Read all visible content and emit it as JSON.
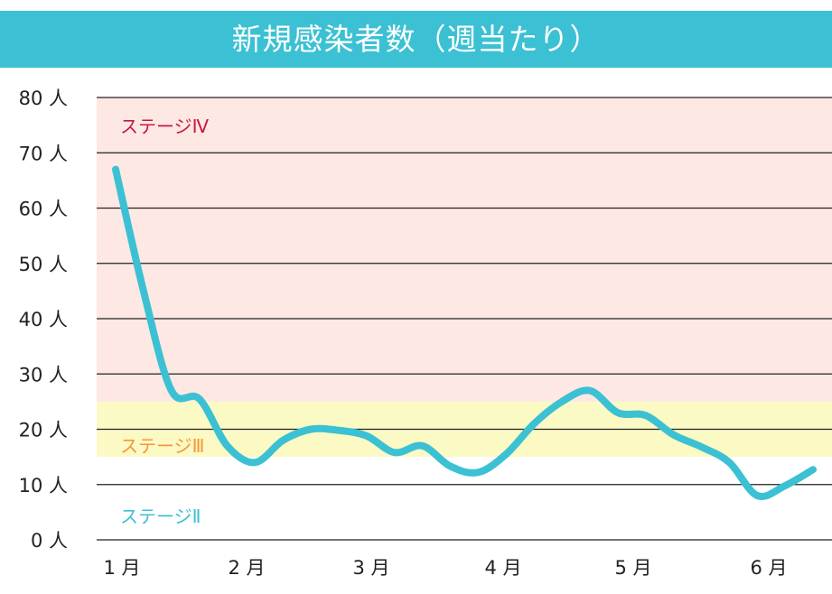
{
  "chart_data": {
    "type": "line",
    "title": "新規感染者数（週当たり）",
    "ylim": [
      0,
      80
    ],
    "yticks": [
      0,
      10,
      20,
      30,
      40,
      50,
      60,
      70,
      80
    ],
    "ytick_labels": [
      "0 人",
      "10 人",
      "20 人",
      "30 人",
      "40 人",
      "50 人",
      "60 人",
      "70 人",
      "80 人"
    ],
    "xtick_labels": [
      "1 月",
      "2 月",
      "3 月",
      "4 月",
      "5 月",
      "6 月"
    ],
    "grid": true,
    "bands": [
      {
        "label": "ステージⅣ",
        "from": 25,
        "to": 80,
        "color": "#fde8e4",
        "label_color": "#c8173f"
      },
      {
        "label": "ステージⅢ",
        "from": 15,
        "to": 25,
        "color": "#fbf9c4",
        "label_color": "#f5973a"
      },
      {
        "label": "ステージⅡ",
        "from": 0,
        "to": 15,
        "color": "#ffffff",
        "label_color": "#3bc1d3"
      }
    ],
    "series": [
      {
        "color": "#3bc1d3",
        "values": [
          67,
          45,
          27,
          25.5,
          17,
          14,
          18,
          20,
          19.8,
          18.8,
          15.8,
          17,
          13.3,
          12.2,
          15.5,
          21,
          25,
          27,
          23,
          22.5,
          19,
          16.8,
          14,
          8,
          9.8,
          12.7
        ]
      }
    ]
  }
}
